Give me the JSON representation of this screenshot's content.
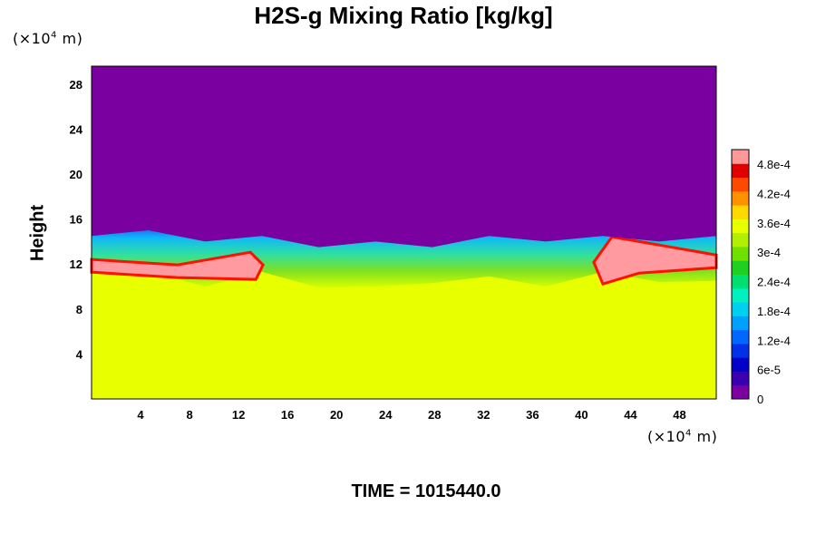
{
  "chart_data": {
    "type": "heatmap",
    "title": "H2S-g Mixing Ratio [kg/kg]",
    "ylabel": "Height",
    "xlabel": "",
    "x_unit_label": "(×10",
    "y_unit_label": "(×10",
    "unit_exponent": "4",
    "unit_suffix": " m)",
    "x_ticks": [
      "4",
      "8",
      "12",
      "16",
      "20",
      "24",
      "28",
      "32",
      "36",
      "40",
      "44",
      "48"
    ],
    "y_ticks": [
      "4",
      "8",
      "12",
      "16",
      "20",
      "24",
      "28"
    ],
    "xlim": [
      0,
      51
    ],
    "ylim": [
      0,
      29.6
    ],
    "colorbar": {
      "tick_labels": [
        "0",
        "6e-5",
        "1.2e-4",
        "1.8e-4",
        "2.4e-4",
        "3e-4",
        "3.6e-4",
        "4.2e-4",
        "4.8e-4"
      ],
      "range": [
        0,
        0.00051
      ],
      "colors": [
        "#7a00a0",
        "#3a00b0",
        "#0000c8",
        "#0030e8",
        "#0068ff",
        "#00a0ff",
        "#00d0f0",
        "#00f0c0",
        "#00e070",
        "#20d020",
        "#70e000",
        "#b0f000",
        "#e8ff00",
        "#ffd800",
        "#ff9000",
        "#ff4800",
        "#e00000",
        "#ff9898"
      ]
    },
    "regions": {
      "upper_value": 0,
      "lower_value": 0.00034,
      "interface_height": [
        14.5,
        15,
        14,
        14.5,
        13.5,
        14,
        13.5,
        14.5,
        14,
        14.5,
        14,
        14.5
      ],
      "high_concentration_bands_x": [
        [
          0,
          14
        ],
        [
          41,
          51
        ]
      ]
    },
    "footer": "TIME = 1015440.0"
  }
}
